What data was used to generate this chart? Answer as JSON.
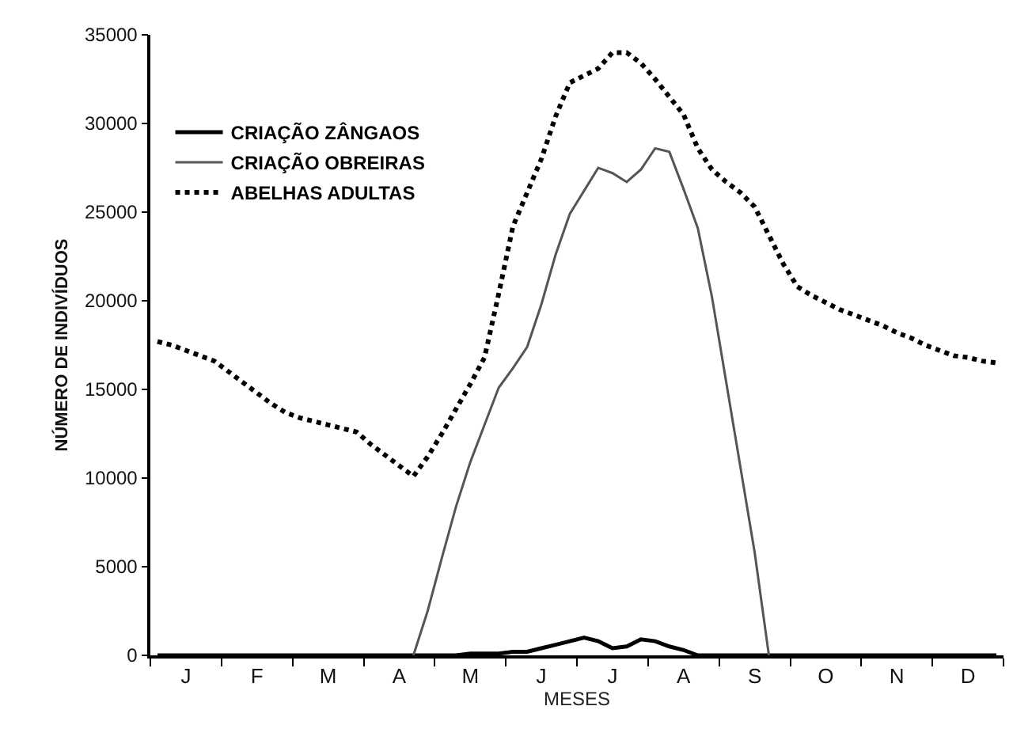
{
  "chart_data": {
    "type": "line",
    "xlabel": "MESES",
    "ylabel": "NÚMERO DE INDIVÍDUOS",
    "categories": [
      null,
      null,
      "J",
      null,
      null,
      null,
      null,
      "F",
      null,
      null,
      null,
      null,
      "M",
      null,
      null,
      null,
      null,
      "A",
      null,
      null,
      null,
      null,
      "M",
      null,
      null,
      null,
      null,
      "J",
      null,
      null,
      null,
      null,
      "J",
      null,
      null,
      null,
      null,
      "A",
      null,
      null,
      null,
      null,
      "S",
      null,
      null,
      null,
      null,
      "O",
      null,
      null,
      null,
      null,
      "N",
      null,
      null,
      null,
      null,
      "D",
      null,
      null
    ],
    "ylim": [
      0,
      35000
    ],
    "yticks": [
      0,
      5000,
      10000,
      15000,
      20000,
      25000,
      30000,
      35000
    ],
    "grid": false,
    "legend": "top left",
    "marker": "none",
    "series": [
      {
        "name": "CRIAÇÃO ZÂNGAOS",
        "color": "#000000",
        "line_style": "solid",
        "values": [
          0,
          0,
          0,
          0,
          0,
          0,
          0,
          0,
          0,
          0,
          0,
          0,
          0,
          0,
          0,
          0,
          0,
          0,
          0,
          0,
          0,
          0,
          100,
          100,
          100,
          200,
          200,
          400,
          600,
          800,
          1000,
          800,
          400,
          500,
          900,
          800,
          500,
          300,
          0,
          0,
          0,
          0,
          0,
          0,
          0,
          0,
          0,
          0,
          0,
          0,
          0,
          0,
          0,
          0,
          0,
          0,
          0,
          0,
          0,
          0
        ]
      },
      {
        "name": "CRIAÇÃO OBREIRAS",
        "color": "#555555",
        "line_style": "solid",
        "values": [
          null,
          null,
          null,
          null,
          null,
          null,
          null,
          null,
          null,
          null,
          null,
          null,
          null,
          null,
          null,
          null,
          null,
          null,
          0,
          2500,
          5500,
          8400,
          10900,
          13000,
          15100,
          16200,
          17400,
          19800,
          22600,
          24900,
          26200,
          27500,
          27200,
          26700,
          27400,
          28600,
          28400,
          26300,
          24100,
          20200,
          15400,
          10600,
          5800,
          0,
          null,
          null,
          null,
          null,
          null,
          null,
          null,
          null,
          null,
          null,
          null,
          null,
          null,
          null,
          null,
          null
        ]
      },
      {
        "name": "ABELHAS ADULTAS",
        "color": "#000000",
        "line_style": "dotted",
        "values": [
          17700,
          17500,
          17200,
          16900,
          16600,
          16000,
          15400,
          14800,
          14200,
          13700,
          13400,
          13200,
          13000,
          12800,
          12600,
          11900,
          11300,
          10700,
          10100,
          11200,
          12500,
          13900,
          15300,
          16800,
          20400,
          24200,
          26100,
          28000,
          30400,
          32300,
          32700,
          33100,
          34000,
          34000,
          33400,
          32500,
          31500,
          30500,
          28600,
          27400,
          26700,
          26100,
          25300,
          23700,
          22100,
          20800,
          20300,
          19900,
          19500,
          19200,
          18900,
          18600,
          18200,
          17900,
          17500,
          17200,
          16900,
          16800,
          16600,
          16500
        ]
      }
    ]
  }
}
